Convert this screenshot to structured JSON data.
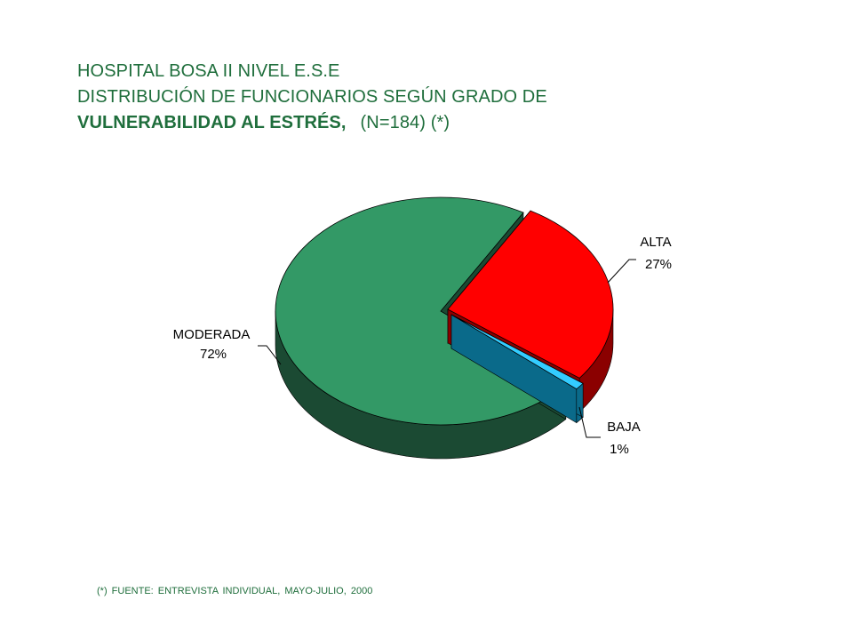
{
  "title": {
    "line1": "HOSPITAL BOSA II NIVEL E.S.E",
    "line2": "DISTRIBUCIÓN DE FUNCIONARIOS SEGÚN GRADO DE",
    "line3_bold": "VULNERABILIDAD AL ESTRÉS,",
    "line3_rest": "(N=184) (*)"
  },
  "footnote": "(*) FUENTE: ENTREVISTA INDIVIDUAL, MAYO-JULIO, 2000",
  "chart_data": {
    "type": "pie",
    "style": "3d-exploded",
    "slices": [
      {
        "label": "ALTA",
        "value": 27,
        "value_label": "27%",
        "color": "#ff0000",
        "side_color": "#8b0000"
      },
      {
        "label": "BAJA",
        "value": 1,
        "value_label": "1%",
        "color": "#33ccff",
        "side_color": "#0a6a8a"
      },
      {
        "label": "MODERADA",
        "value": 72,
        "value_label": "72%",
        "color": "#339966",
        "side_color": "#1b4a33"
      }
    ]
  }
}
